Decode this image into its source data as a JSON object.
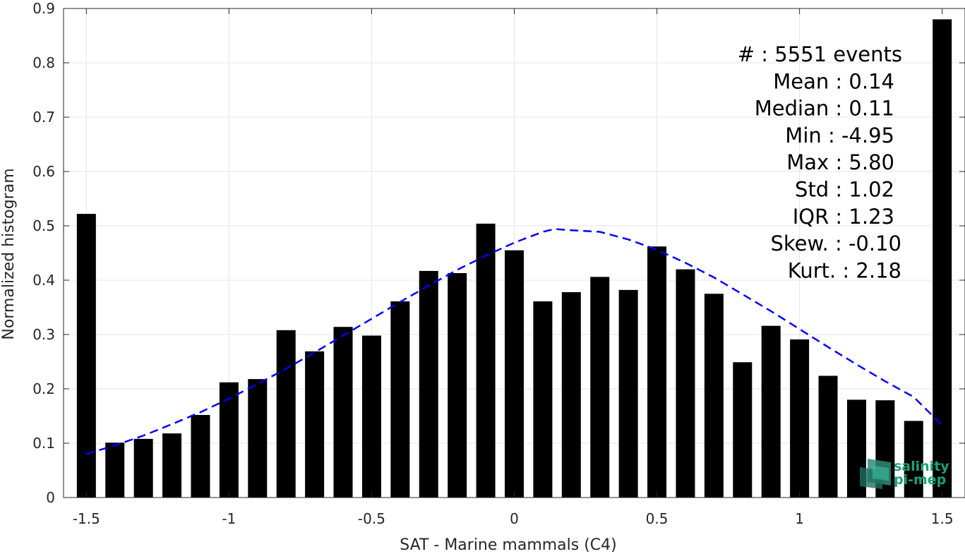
{
  "chart_data": {
    "type": "bar",
    "xlabel": "SAT - Marine mammals (C4)",
    "ylabel": "Normalized histogram",
    "xlim": [
      -1.58,
      1.58
    ],
    "ylim": [
      0,
      0.9
    ],
    "x_ticks": [
      -1.5,
      -1,
      -0.5,
      0,
      0.5,
      1,
      1.5
    ],
    "x_tick_labels": [
      "-1.5",
      "-1",
      "-0.5",
      "0",
      "0.5",
      "1",
      "1.5"
    ],
    "y_ticks": [
      0,
      0.1,
      0.2,
      0.3,
      0.4,
      0.5,
      0.6,
      0.7,
      0.8,
      0.9
    ],
    "y_tick_labels": [
      "0",
      "0.1",
      "0.2",
      "0.3",
      "0.4",
      "0.5",
      "0.6",
      "0.7",
      "0.8",
      "0.9"
    ],
    "grid": true,
    "bar_color": "#000000",
    "curve_color": "#0000ff",
    "bins": {
      "x": [
        -1.5,
        -1.4,
        -1.3,
        -1.2,
        -1.1,
        -1.0,
        -0.9,
        -0.8,
        -0.7,
        -0.6,
        -0.5,
        -0.4,
        -0.3,
        -0.2,
        -0.1,
        0.0,
        0.1,
        0.2,
        0.3,
        0.4,
        0.5,
        0.6,
        0.7,
        0.8,
        0.9,
        1.0,
        1.1,
        1.2,
        1.3,
        1.4,
        1.5
      ],
      "values": [
        0.522,
        0.101,
        0.108,
        0.118,
        0.152,
        0.212,
        0.218,
        0.308,
        0.269,
        0.314,
        0.298,
        0.361,
        0.417,
        0.413,
        0.504,
        0.455,
        0.361,
        0.378,
        0.406,
        0.382,
        0.462,
        0.42,
        0.375,
        0.249,
        0.316,
        0.291,
        0.224,
        0.18,
        0.179,
        0.141,
        0.88
      ]
    },
    "fit_curve": {
      "name": "normal fit",
      "style": "dashed",
      "x": [
        -1.5,
        -1.4,
        -1.3,
        -1.2,
        -1.1,
        -1.0,
        -0.9,
        -0.8,
        -0.7,
        -0.6,
        -0.5,
        -0.4,
        -0.3,
        -0.2,
        -0.1,
        0.0,
        0.1,
        0.14,
        0.2,
        0.3,
        0.4,
        0.5,
        0.6,
        0.7,
        0.8,
        0.9,
        1.0,
        1.1,
        1.2,
        1.3,
        1.4,
        1.5
      ],
      "y": [
        0.08,
        0.096,
        0.114,
        0.135,
        0.157,
        0.182,
        0.209,
        0.237,
        0.267,
        0.298,
        0.329,
        0.36,
        0.39,
        0.419,
        0.445,
        0.469,
        0.489,
        0.494,
        0.492,
        0.489,
        0.475,
        0.456,
        0.432,
        0.405,
        0.374,
        0.343,
        0.31,
        0.277,
        0.245,
        0.214,
        0.185,
        0.133
      ]
    }
  },
  "stats": {
    "lines": [
      "#  : 5551 events",
      "Mean : 0.14",
      "Median : 0.11",
      "Min : -4.95",
      "Max : 5.80",
      "Std : 1.02",
      "IQR : 1.23",
      "Skew. : -0.10",
      "Kurt. : 2.18"
    ]
  },
  "logo": {
    "line1": "salinity",
    "line2": "pi-mep",
    "color": "#1aa37a"
  }
}
